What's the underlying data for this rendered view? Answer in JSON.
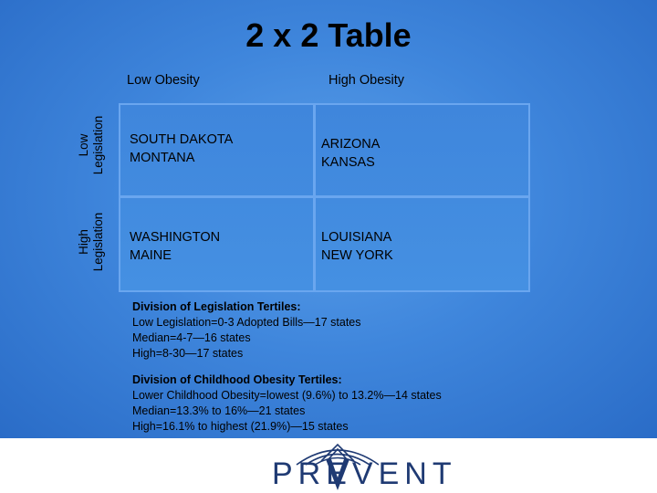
{
  "title": "2 x 2 Table",
  "columns": {
    "low": "Low Obesity",
    "high": "High Obesity"
  },
  "rows": {
    "low": {
      "line1": "Low",
      "line2": "Legislation"
    },
    "high": {
      "line1": "High",
      "line2": "Legislation"
    }
  },
  "cells": {
    "low_leg_low_ob": [
      "SOUTH DAKOTA",
      "MONTANA"
    ],
    "low_leg_high_ob": [
      "ARIZONA",
      "KANSAS"
    ],
    "high_leg_low_ob": [
      "WASHINGTON",
      "MAINE"
    ],
    "high_leg_high_ob": [
      "LOUISIANA",
      "NEW YORK"
    ]
  },
  "legislation_tertiles": {
    "heading": "Division of Legislation Tertiles:",
    "lines": [
      "Low Legislation=0-3 Adopted Bills—17 states",
      "Median=4-7—16 states",
      "High=8-30—17 states"
    ]
  },
  "obesity_tertiles": {
    "heading": "Division of Childhood Obesity Tertiles:",
    "lines": [
      "Lower Childhood Obesity=lowest (9.6%) to 13.2%—14 states",
      "Median=13.3% to 16%—21 states",
      "High=16.1% to highest (21.9%)—15 states"
    ]
  },
  "logo": {
    "text": "PREVENT",
    "color": "#1f3a73"
  }
}
